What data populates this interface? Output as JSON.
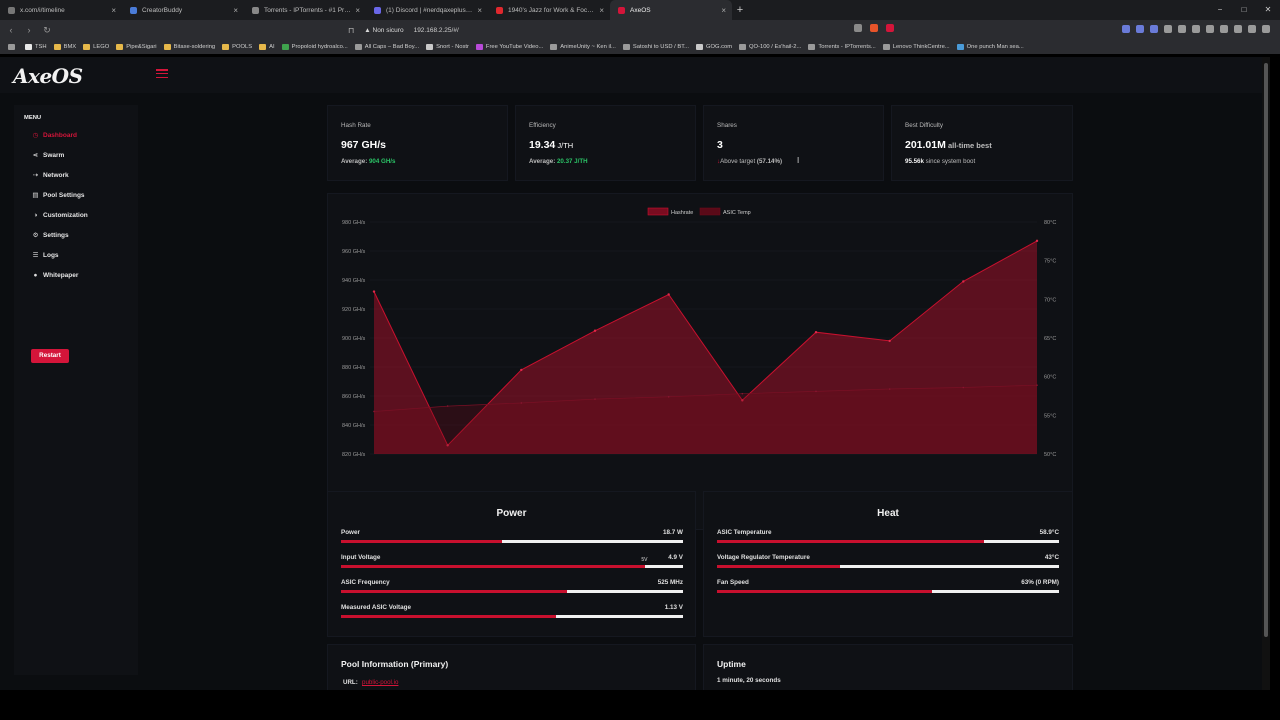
{
  "browser": {
    "tabs": [
      {
        "title": "x.com/i/timeline",
        "color": "#777777"
      },
      {
        "title": "CreatorBuddy",
        "color": "#4a7bd8"
      },
      {
        "title": "Torrents - IPTorrents - #1 Private Tra",
        "color": "#888888"
      },
      {
        "title": "(1) Discord | #nerdqaxeplus | Open S",
        "color": "#6a67e8"
      },
      {
        "title": "1940's Jazz for Work & Focus - S",
        "color": "#e0282e"
      },
      {
        "title": "AxeOS",
        "color": "#d4153a",
        "active": true
      }
    ],
    "new_tab": "+",
    "window_controls": {
      "minimize": "−",
      "maximize": "□",
      "close": "✕"
    },
    "security_label": "Non sicuro",
    "url": "192.168.2.25/#/",
    "bookmarks": [
      {
        "label": "TSH",
        "color": "#e8e8e8"
      },
      {
        "label": "BMX",
        "color": "#e6b84a"
      },
      {
        "label": "LEGO",
        "color": "#e6b84a"
      },
      {
        "label": "Pipe&Sigari",
        "color": "#e6b84a"
      },
      {
        "label": "Bitaxe-soldering",
        "color": "#e6b84a"
      },
      {
        "label": "POOLS",
        "color": "#e6b84a"
      },
      {
        "label": "AI",
        "color": "#e6b84a"
      },
      {
        "label": "Propoloid hydroalco...",
        "color": "#3fa34d"
      },
      {
        "label": "All Caps – Bad Boy...",
        "color": "#9a9a9a"
      },
      {
        "label": "Snort - Nostr",
        "color": "#c9c9c9"
      },
      {
        "label": "Free YouTube Video...",
        "color": "#b84ad8"
      },
      {
        "label": "AnimeUnity ~ Ken il...",
        "color": "#9a9a9a"
      },
      {
        "label": "Satoshi to USD / BT...",
        "color": "#9a9a9a"
      },
      {
        "label": "GOG.com",
        "color": "#c9c9c9"
      },
      {
        "label": "QO-100 / Es'hail-2...",
        "color": "#9a9a9a"
      },
      {
        "label": "Torrents - IPTorrents...",
        "color": "#9a9a9a"
      },
      {
        "label": "Lenovo ThinkCentre...",
        "color": "#9a9a9a"
      },
      {
        "label": "One punch Man sea...",
        "color": "#4a9bd8"
      }
    ]
  },
  "app": {
    "logo": "AxeOS",
    "menu_title": "MENU",
    "menu": [
      {
        "label": "Dashboard",
        "icon": "◷",
        "active": true
      },
      {
        "label": "Swarm",
        "icon": "⋖"
      },
      {
        "label": "Network",
        "icon": "⇢"
      },
      {
        "label": "Pool Settings",
        "icon": "▤"
      },
      {
        "label": "Customization",
        "icon": "◑"
      },
      {
        "label": "Settings",
        "icon": "⚙"
      },
      {
        "label": "Logs",
        "icon": "☰"
      },
      {
        "label": "Whitepaper",
        "icon": "●"
      }
    ],
    "restart_label": "Restart"
  },
  "stats": {
    "hashrate": {
      "label": "Hash Rate",
      "value": "967",
      "unit": " GH/s",
      "avg_prefix": "Average: ",
      "avg_value": "904 GH/s"
    },
    "efficiency": {
      "label": "Efficiency",
      "value": "19.34",
      "unit": " J/TH",
      "avg_prefix": "Average: ",
      "avg_value": "20.37 J/TH"
    },
    "shares": {
      "label": "Shares",
      "value": "3",
      "arrow": "↓",
      "sub": "Above target",
      "pct": "(57.14%)"
    },
    "difficulty": {
      "label": "Best Difficulty",
      "value": "201.01M",
      "suffix": " all-time best",
      "sub_value": "95.56k",
      "sub_text": " since system boot"
    }
  },
  "chart_data": {
    "type": "area",
    "legend_placement": "top-center",
    "series": [
      {
        "name": "Hashrate",
        "axis": "left",
        "color": "#c8102e",
        "values": [
          932,
          826,
          878,
          905,
          930,
          857,
          904,
          898,
          939,
          967
        ]
      },
      {
        "name": "ASIC Temp",
        "axis": "right",
        "color": "#6b0a1c",
        "values": [
          55.5,
          56.2,
          56.6,
          57.1,
          57.4,
          57.8,
          58.1,
          58.4,
          58.6,
          58.9
        ]
      }
    ],
    "yleft": {
      "ticks": [
        "820 GH/s",
        "840 GH/s",
        "860 GH/s",
        "880 GH/s",
        "900 GH/s",
        "920 GH/s",
        "940 GH/s",
        "960 GH/s",
        "980 GH/s"
      ],
      "lim": [
        820,
        980
      ]
    },
    "yright": {
      "ticks": [
        "50°C",
        "55°C",
        "60°C",
        "65°C",
        "70°C",
        "75°C",
        "80°C"
      ],
      "lim": [
        50,
        80
      ]
    },
    "grid": true
  },
  "power": {
    "title": "Power",
    "rows": [
      {
        "label": "Power",
        "value": "18.7 W",
        "fill": 0.47
      },
      {
        "label": "Input Voltage",
        "value": "4.9 V",
        "fill": 0.89,
        "marker": "5V"
      },
      {
        "label": "ASIC Frequency",
        "value": "525 MHz",
        "fill": 0.66
      },
      {
        "label": "Measured ASIC Voltage",
        "value": "1.13 V",
        "fill": 0.63
      }
    ]
  },
  "heat": {
    "title": "Heat",
    "rows": [
      {
        "label": "ASIC Temperature",
        "value": "58.9°C",
        "fill": 0.78
      },
      {
        "label": "Voltage Regulator Temperature",
        "value": "43°C",
        "fill": 0.36
      },
      {
        "label": "Fan Speed",
        "value": "63% (0 RPM)",
        "fill": 0.63
      }
    ]
  },
  "pool": {
    "title": "Pool Information (Primary)",
    "url_label": "URL:",
    "url": "public-pool.io"
  },
  "uptime": {
    "title": "Uptime",
    "value": "1 minute, 20 seconds"
  }
}
